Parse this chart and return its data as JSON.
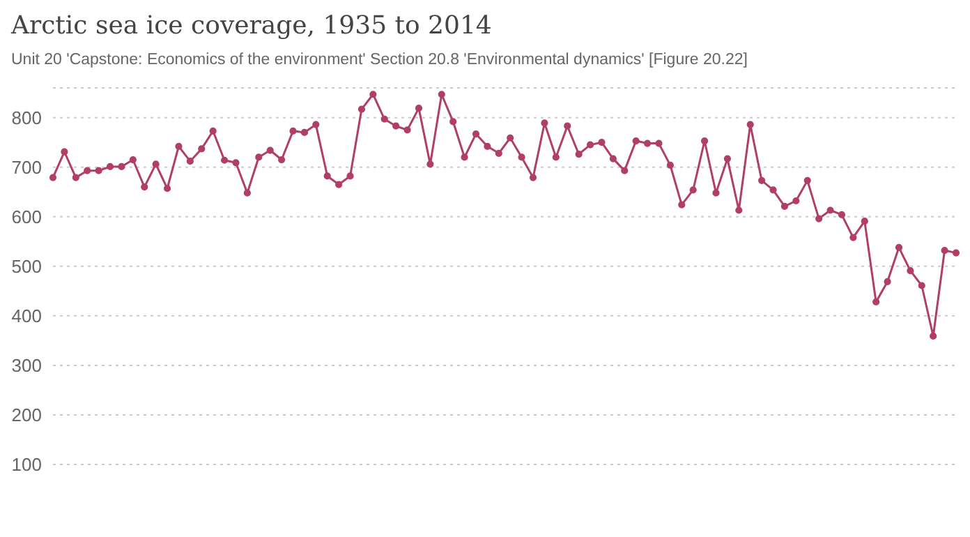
{
  "chart_data": {
    "type": "line",
    "title": "Arctic sea ice coverage, 1935 to 2014",
    "subtitle": "Unit 20 'Capstone: Economics of the environment' Section 20.8 'Environmental dynamics' [Figure 20.22]",
    "categories": [
      null,
      null,
      null,
      null,
      null,
      null,
      null,
      null,
      null,
      null,
      null,
      null,
      null,
      null,
      null,
      null,
      null,
      null,
      null,
      null,
      null,
      null,
      null,
      null,
      null,
      null,
      null,
      null,
      null,
      null,
      null,
      null,
      null,
      null,
      null,
      null,
      null,
      null,
      null,
      null,
      null,
      null,
      null,
      null,
      null,
      null,
      null,
      null,
      null,
      null,
      null,
      null,
      null,
      null,
      null,
      null,
      null,
      null,
      null,
      null,
      null,
      null,
      null,
      null,
      null,
      null,
      null,
      null,
      null,
      null,
      null,
      null,
      null,
      null,
      null,
      null,
      null,
      null,
      null,
      null
    ],
    "series": [
      {
        "color": "#b13f64",
        "values": [
          679,
          731,
          679,
          693,
          693,
          701,
          701,
          715,
          660,
          706,
          657,
          742,
          712,
          737,
          773,
          714,
          709,
          648,
          720,
          734,
          715,
          773,
          770,
          786,
          682,
          665,
          682,
          817,
          847,
          797,
          783,
          775,
          819,
          706,
          847,
          792,
          720,
          767,
          742,
          728,
          759,
          720,
          679,
          789,
          720,
          783,
          726,
          745,
          750,
          717,
          693,
          753,
          748,
          748,
          704,
          624,
          654,
          753,
          648,
          717,
          613,
          786,
          673,
          654,
          621,
          632,
          673,
          596,
          613,
          604,
          558,
          591,
          428,
          469,
          538,
          491,
          461,
          359,
          532,
          527
        ]
      }
    ],
    "ylim": [
      100,
      860
    ],
    "yticks": [
      100,
      200,
      300,
      400,
      500,
      600,
      700,
      800
    ],
    "grid": "y",
    "tick_labels": "y",
    "marker": "circle",
    "line_style": "solid"
  }
}
